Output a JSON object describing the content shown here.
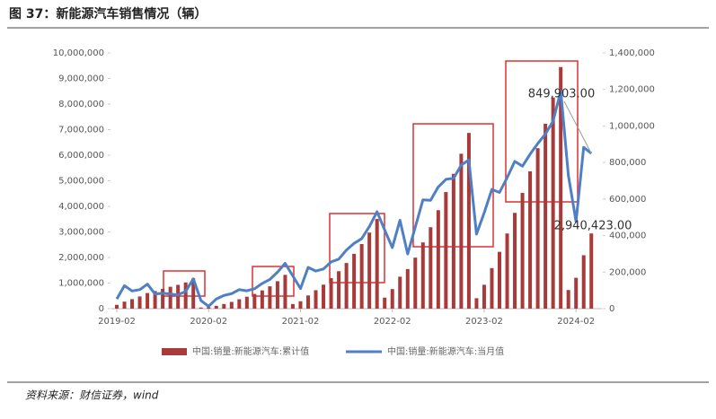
{
  "chart_data": {
    "type": "bar-line",
    "title": "图 37：新能源汽车销售情况（辆）",
    "source": "资料来源：财信证券，wind",
    "categories": [
      "2019-02",
      null,
      null,
      null,
      null,
      null,
      null,
      null,
      null,
      null,
      null,
      null,
      "2020-02",
      null,
      null,
      null,
      null,
      null,
      null,
      null,
      null,
      null,
      null,
      null,
      "2021-02",
      null,
      null,
      null,
      null,
      null,
      null,
      null,
      null,
      null,
      null,
      null,
      "2022-02",
      null,
      null,
      null,
      null,
      null,
      null,
      null,
      null,
      null,
      null,
      null,
      "2023-02",
      null,
      null,
      null,
      null,
      null,
      null,
      null,
      null,
      null,
      null,
      null,
      "2024-02",
      null,
      null
    ],
    "series": [
      {
        "name": "中国:销量:新能源汽车:累计值",
        "type": "bar",
        "color": "#a83a3a",
        "values": [
          149000,
          275000,
          372000,
          476000,
          610000,
          690000,
          775000,
          855000,
          930000,
          1025000,
          1188000,
          44000,
          57000,
          110000,
          182000,
          264000,
          368000,
          466000,
          575000,
          713000,
          873000,
          1073000,
          1321000,
          179000,
          289000,
          515000,
          721000,
          938000,
          1194000,
          1465000,
          1786000,
          2143000,
          2526000,
          2976000,
          3507000,
          431000,
          765000,
          1249000,
          1548000,
          1995000,
          2591000,
          3184000,
          3850000,
          4558000,
          5272000,
          6058000,
          6872000,
          408000,
          933000,
          1586000,
          2222000,
          2939000,
          3745000,
          4525000,
          5371000,
          6275000,
          7231000,
          8257000,
          9448000,
          729000,
          1206000,
          2089000,
          2940423
        ],
        "value_labels": [
          null,
          null,
          null,
          null,
          null,
          null,
          null,
          null,
          null,
          null,
          null,
          null,
          null,
          null,
          null,
          null,
          null,
          null,
          null,
          null,
          null,
          null,
          null,
          null,
          null,
          null,
          null,
          null,
          null,
          null,
          null,
          null,
          null,
          null,
          null,
          null,
          null,
          null,
          null,
          null,
          null,
          null,
          null,
          null,
          null,
          null,
          null,
          null,
          null,
          null,
          null,
          null,
          null,
          null,
          null,
          null,
          null,
          null,
          null,
          null,
          null,
          null,
          "2,940,423.00"
        ]
      },
      {
        "name": "中国:销量:新能源汽车:当月值",
        "type": "line",
        "axis": "y2",
        "color": "#4f7fc4",
        "values": [
          53000,
          126000,
          97000,
          104000,
          134000,
          80000,
          85000,
          80000,
          75000,
          95000,
          163000,
          44000,
          13000,
          53000,
          72000,
          82000,
          104000,
          98000,
          109000,
          138000,
          160000,
          200000,
          248000,
          179000,
          110000,
          226000,
          206000,
          217000,
          256000,
          271000,
          321000,
          357000,
          383000,
          450000,
          531000,
          431000,
          334000,
          484000,
          299000,
          447000,
          596000,
          593000,
          666000,
          708000,
          714000,
          786000,
          814000,
          408000,
          525000,
          653000,
          636000,
          717000,
          806000,
          780000,
          846000,
          904000,
          956000,
          1026000,
          1191000,
          729000,
          477000,
          883000,
          849903
        ],
        "value_labels": [
          null,
          null,
          null,
          null,
          null,
          null,
          null,
          null,
          null,
          null,
          null,
          null,
          null,
          null,
          null,
          null,
          null,
          null,
          null,
          null,
          null,
          null,
          null,
          null,
          null,
          null,
          null,
          null,
          null,
          null,
          null,
          null,
          null,
          null,
          null,
          null,
          null,
          null,
          null,
          null,
          null,
          null,
          null,
          null,
          null,
          null,
          null,
          null,
          null,
          null,
          null,
          null,
          null,
          null,
          null,
          null,
          null,
          null,
          null,
          null,
          null,
          null,
          "849,903.00"
        ]
      }
    ],
    "ylim": [
      0,
      10000000
    ],
    "yticks": [
      0,
      {
        "value": 1000000,
        "label": "1,000,000"
      },
      {
        "value": 2000000,
        "label": "2,000,000"
      },
      {
        "value": 3000000,
        "label": "3,000,000"
      },
      {
        "value": 4000000,
        "label": "4,000,000"
      },
      {
        "value": 5000000,
        "label": "5,000,000"
      },
      {
        "value": 6000000,
        "label": "6,000,000"
      },
      {
        "value": 7000000,
        "label": "7,000,000"
      },
      {
        "value": 8000000,
        "label": "8,000,000"
      },
      {
        "value": 9000000,
        "label": "9,000,000"
      },
      {
        "value": 10000000,
        "label": "10,000,000"
      }
    ],
    "y2lim": [
      0,
      1400000
    ],
    "y2ticks": [
      0,
      {
        "value": 200000,
        "label": "200,000"
      },
      {
        "value": 400000,
        "label": "400,000"
      },
      {
        "value": 600000,
        "label": "600,000"
      },
      {
        "value": 800000,
        "label": "800,000"
      },
      {
        "value": 1000000,
        "label": "1,000,000"
      },
      {
        "value": 1200000,
        "label": "1,200,000"
      },
      {
        "value": 1400000,
        "label": "1,400,000"
      }
    ],
    "legend": "bottom"
  }
}
